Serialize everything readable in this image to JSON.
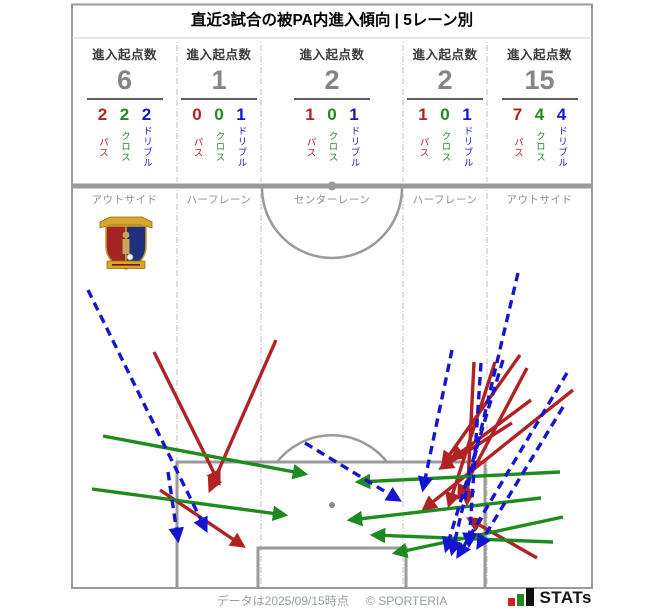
{
  "title": "直近3試合の被PA内進入傾向 | 5レーン別",
  "stats_columns": [
    {
      "header": "進入起点数",
      "total": "6",
      "values": {
        "pass": "2",
        "cross": "2",
        "dribble": "2"
      },
      "lane": "アウトサイド"
    },
    {
      "header": "進入起点数",
      "total": "1",
      "values": {
        "pass": "0",
        "cross": "0",
        "dribble": "1"
      },
      "lane": "ハーフレーン"
    },
    {
      "header": "進入起点数",
      "total": "2",
      "values": {
        "pass": "1",
        "cross": "0",
        "dribble": "1"
      },
      "lane": "センターレーン"
    },
    {
      "header": "進入起点数",
      "total": "2",
      "values": {
        "pass": "1",
        "cross": "0",
        "dribble": "1"
      },
      "lane": "ハーフレーン"
    },
    {
      "header": "進入起点数",
      "total": "15",
      "values": {
        "pass": "7",
        "cross": "4",
        "dribble": "4"
      },
      "lane": "アウトサイド"
    }
  ],
  "legend": {
    "pass": "パス",
    "cross": "クロス",
    "dribble": "ドリブル"
  },
  "footer": {
    "note": "データは2025/09/15時点",
    "credit": "© SPORTERIA",
    "logo_text": "STATs"
  },
  "colors": {
    "pass": "#b22222",
    "cross": "#1f8b1f",
    "dribble": "#1515d0",
    "pitch_line": "#9a9a9a",
    "divider": "#c2c2c2",
    "total_text": "#868686",
    "header_text": "#3a3a3a",
    "lane_text": "#8f8f8f",
    "footer_text": "#98a0a4"
  },
  "chart_data": {
    "type": "pitch-arrow-map",
    "title": "直近3試合の被PA内進入傾向 | 5レーン別",
    "lanes": [
      "アウトサイド",
      "ハーフレーン",
      "センターレーン",
      "ハーフレーン",
      "アウトサイド"
    ],
    "entry_origin_counts": [
      6,
      1,
      2,
      2,
      15
    ],
    "entry_types": {
      "pass": [
        2,
        0,
        1,
        1,
        7
      ],
      "cross": [
        2,
        0,
        0,
        0,
        4
      ],
      "dribble": [
        2,
        1,
        1,
        1,
        4
      ]
    },
    "arrows": [
      {
        "type": "pass",
        "from": [
          154,
          352
        ],
        "to": [
          219,
          483
        ]
      },
      {
        "type": "pass",
        "from": [
          276,
          340
        ],
        "to": [
          210,
          490
        ]
      },
      {
        "type": "pass",
        "from": [
          160,
          490
        ],
        "to": [
          243,
          546
        ]
      },
      {
        "type": "pass",
        "from": [
          474,
          362
        ],
        "to": [
          467,
          503
        ]
      },
      {
        "type": "pass",
        "from": [
          520,
          355
        ],
        "to": [
          443,
          464
        ]
      },
      {
        "type": "pass",
        "from": [
          527,
          368
        ],
        "to": [
          459,
          497
        ]
      },
      {
        "type": "pass",
        "from": [
          573,
          390
        ],
        "to": [
          424,
          509
        ]
      },
      {
        "type": "pass",
        "from": [
          537,
          558
        ],
        "to": [
          469,
          519
        ]
      },
      {
        "type": "pass",
        "from": [
          531,
          400
        ],
        "to": [
          452,
          459
        ]
      },
      {
        "type": "pass",
        "from": [
          512,
          423
        ],
        "to": [
          441,
          468
        ]
      },
      {
        "type": "pass",
        "from": [
          495,
          362
        ],
        "to": [
          449,
          505
        ]
      },
      {
        "type": "cross",
        "from": [
          103,
          436
        ],
        "to": [
          305,
          474
        ]
      },
      {
        "type": "cross",
        "from": [
          92,
          489
        ],
        "to": [
          285,
          515
        ]
      },
      {
        "type": "cross",
        "from": [
          560,
          472
        ],
        "to": [
          358,
          482
        ]
      },
      {
        "type": "cross",
        "from": [
          563,
          517
        ],
        "to": [
          395,
          553
        ]
      },
      {
        "type": "cross",
        "from": [
          541,
          498
        ],
        "to": [
          350,
          520
        ]
      },
      {
        "type": "cross",
        "from": [
          553,
          542
        ],
        "to": [
          373,
          535
        ]
      },
      {
        "type": "dribble",
        "from": [
          88,
          290
        ],
        "to": [
          206,
          530
        ]
      },
      {
        "type": "dribble",
        "from": [
          168,
          472
        ],
        "to": [
          178,
          540
        ]
      },
      {
        "type": "dribble",
        "from": [
          305,
          443
        ],
        "to": [
          399,
          500
        ]
      },
      {
        "type": "dribble",
        "from": [
          452,
          350
        ],
        "to": [
          423,
          489
        ]
      },
      {
        "type": "dribble",
        "from": [
          481,
          363
        ],
        "to": [
          469,
          545
        ]
      },
      {
        "type": "dribble",
        "from": [
          518,
          273
        ],
        "to": [
          452,
          553
        ]
      },
      {
        "type": "dribble",
        "from": [
          567,
          373
        ],
        "to": [
          458,
          556
        ]
      },
      {
        "type": "dribble",
        "from": [
          563,
          407
        ],
        "to": [
          478,
          547
        ]
      },
      {
        "type": "dribble",
        "from": [
          503,
          360
        ],
        "to": [
          446,
          550
        ]
      }
    ]
  }
}
